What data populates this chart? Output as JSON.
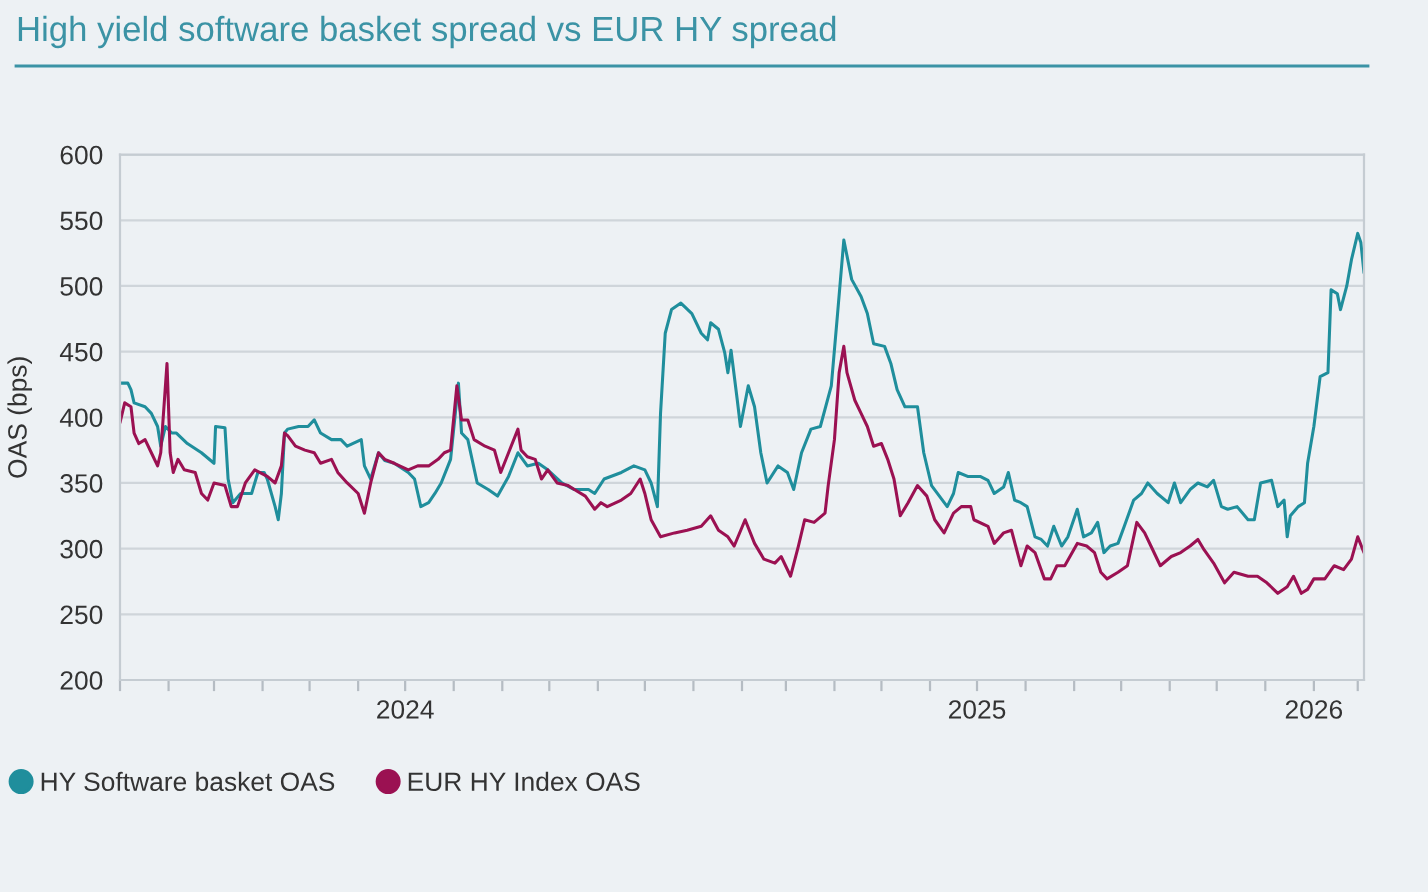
{
  "chart_data": {
    "type": "line",
    "title": "High yield software basket spread vs EUR HY spread",
    "ylabel": "OAS (bps)",
    "series": [
      {
        "name": "HY Software basket OAS",
        "color": "#1f8e9c",
        "x": [
          "2024-01-01",
          "2024-01-06",
          "2024-01-08",
          "2024-01-10",
          "2024-01-17",
          "2024-01-21",
          "2024-01-25",
          "2024-01-27",
          "2024-01-30",
          "2024-02-03",
          "2024-02-06",
          "2024-02-13",
          "2024-02-22",
          "2024-03-01",
          "2024-03-02",
          "2024-03-08",
          "2024-03-10",
          "2024-03-13",
          "2024-03-18",
          "2024-03-25",
          "2024-03-29",
          "2024-04-02",
          "2024-04-04",
          "2024-04-09",
          "2024-04-11",
          "2024-04-13",
          "2024-04-15",
          "2024-04-17",
          "2024-04-24",
          "2024-04-30",
          "2024-05-04",
          "2024-05-08",
          "2024-05-15",
          "2024-05-21",
          "2024-05-25",
          "2024-06-03",
          "2024-06-05",
          "2024-06-09",
          "2024-06-14",
          "2024-06-18",
          "2024-06-24",
          "2024-07-03",
          "2024-07-07",
          "2024-07-11",
          "2024-07-16",
          "2024-07-20",
          "2024-07-24",
          "2024-07-30",
          "2024-08-04",
          "2024-08-06",
          "2024-08-10",
          "2024-08-16",
          "2024-08-23",
          "2024-08-29",
          "2024-09-05",
          "2024-09-11",
          "2024-09-17",
          "2024-09-24",
          "2024-09-30",
          "2024-10-09",
          "2024-10-17",
          "2024-10-26",
          "2024-10-30",
          "2024-11-05",
          "2024-11-16",
          "2024-11-24",
          "2024-12-01",
          "2024-12-05",
          "2024-12-09",
          "2024-12-11",
          "2024-12-14",
          "2024-12-18",
          "2024-12-24",
          "2024-12-31",
          "2025-01-06",
          "2025-01-10",
          "2025-01-12",
          "2025-01-17",
          "2025-01-21",
          "2025-01-23",
          "2025-01-25",
          "2025-01-29",
          "2025-01-31",
          "2025-02-05",
          "2025-02-09",
          "2025-02-13",
          "2025-02-17",
          "2025-02-24",
          "2025-03-02",
          "2025-03-06",
          "2025-03-11",
          "2025-03-17",
          "2025-03-23",
          "2025-03-30",
          "2025-04-03",
          "2025-04-07",
          "2025-04-12",
          "2025-04-18",
          "2025-04-22",
          "2025-04-26",
          "2025-05-03",
          "2025-05-07",
          "2025-05-11",
          "2025-05-16",
          "2025-05-24",
          "2025-05-28",
          "2025-06-02",
          "2025-06-12",
          "2025-06-16",
          "2025-06-19",
          "2025-06-25",
          "2025-07-03",
          "2025-07-08",
          "2025-07-12",
          "2025-07-18",
          "2025-07-21",
          "2025-07-25",
          "2025-07-29",
          "2025-08-02",
          "2025-08-07",
          "2025-08-11",
          "2025-08-15",
          "2025-08-19",
          "2025-08-24",
          "2025-08-28",
          "2025-09-03",
          "2025-09-07",
          "2025-09-12",
          "2025-09-16",
          "2025-09-20",
          "2025-09-24",
          "2025-09-29",
          "2025-10-03",
          "2025-10-09",
          "2025-10-14",
          "2025-10-18",
          "2025-10-24",
          "2025-10-31",
          "2025-11-04",
          "2025-11-08",
          "2025-11-14",
          "2025-11-19",
          "2025-11-25",
          "2025-11-29",
          "2025-12-04",
          "2025-12-08",
          "2025-12-14",
          "2025-12-21",
          "2025-12-25",
          "2025-12-29",
          "2026-01-05",
          "2026-01-09",
          "2026-01-13",
          "2026-01-15",
          "2026-01-17",
          "2026-01-22",
          "2026-01-26",
          "2026-01-28",
          "2026-02-01",
          "2026-02-05",
          "2026-02-10",
          "2026-02-12",
          "2026-02-16",
          "2026-02-18",
          "2026-02-22",
          "2026-02-25",
          "2026-03-01",
          "2026-03-03",
          "2026-03-05"
        ],
        "values": [
          426,
          426,
          421,
          411,
          408,
          403,
          393,
          378,
          393,
          388,
          388,
          380,
          373,
          365,
          393,
          392,
          353,
          335,
          342,
          342,
          358,
          358,
          353,
          332,
          322,
          342,
          388,
          391,
          393,
          393,
          398,
          388,
          383,
          383,
          378,
          383,
          363,
          353,
          373,
          367,
          365,
          358,
          353,
          332,
          335,
          342,
          350,
          368,
          426,
          388,
          383,
          350,
          345,
          340,
          355,
          373,
          363,
          365,
          360,
          350,
          345,
          345,
          342,
          353,
          358,
          363,
          360,
          350,
          332,
          403,
          464,
          482,
          487,
          479,
          464,
          459,
          472,
          467,
          449,
          434,
          451,
          413,
          393,
          424,
          408,
          373,
          350,
          363,
          358,
          345,
          373,
          391,
          393,
          424,
          479,
          535,
          505,
          492,
          479,
          456,
          454,
          441,
          421,
          408,
          408,
          373,
          348,
          332,
          342,
          358,
          355,
          355,
          352,
          342,
          347,
          358,
          337,
          335,
          332,
          309,
          307,
          302,
          317,
          302,
          309,
          330,
          309,
          312,
          320,
          297,
          302,
          304,
          317,
          337,
          342,
          350,
          342,
          335,
          350,
          335,
          345,
          350,
          347,
          352,
          332,
          330,
          332,
          322,
          322,
          350,
          352,
          332,
          337,
          309,
          325,
          332,
          335,
          365,
          393,
          431,
          434,
          497,
          494,
          482,
          500,
          520,
          540,
          533,
          510
        ]
      },
      {
        "name": "EUR HY Index OAS",
        "color": "#9b1152",
        "x": [
          "2024-01-01",
          "2024-01-04",
          "2024-01-08",
          "2024-01-10",
          "2024-01-13",
          "2024-01-17",
          "2024-01-21",
          "2024-01-25",
          "2024-01-27",
          "2024-01-31",
          "2024-02-02",
          "2024-02-04",
          "2024-02-07",
          "2024-02-11",
          "2024-02-18",
          "2024-02-22",
          "2024-02-26",
          "2024-03-01",
          "2024-03-08",
          "2024-03-12",
          "2024-03-16",
          "2024-03-21",
          "2024-03-27",
          "2024-04-04",
          "2024-04-09",
          "2024-04-13",
          "2024-04-15",
          "2024-04-17",
          "2024-04-22",
          "2024-04-28",
          "2024-05-04",
          "2024-05-08",
          "2024-05-15",
          "2024-05-19",
          "2024-05-25",
          "2024-06-01",
          "2024-06-05",
          "2024-06-09",
          "2024-06-14",
          "2024-06-18",
          "2024-06-24",
          "2024-07-03",
          "2024-07-09",
          "2024-07-16",
          "2024-07-22",
          "2024-07-26",
          "2024-07-30",
          "2024-08-03",
          "2024-08-06",
          "2024-08-10",
          "2024-08-14",
          "2024-08-21",
          "2024-08-27",
          "2024-08-31",
          "2024-09-05",
          "2024-09-11",
          "2024-09-13",
          "2024-09-17",
          "2024-09-22",
          "2024-09-26",
          "2024-09-30",
          "2024-10-06",
          "2024-10-13",
          "2024-10-17",
          "2024-10-24",
          "2024-10-30",
          "2024-11-03",
          "2024-11-07",
          "2024-11-16",
          "2024-11-22",
          "2024-11-28",
          "2024-12-01",
          "2024-12-05",
          "2024-12-11",
          "2024-12-20",
          "2024-12-28",
          "2025-01-06",
          "2025-01-12",
          "2025-01-17",
          "2025-01-23",
          "2025-01-27",
          "2025-02-03",
          "2025-02-09",
          "2025-02-15",
          "2025-02-22",
          "2025-02-26",
          "2025-03-04",
          "2025-03-09",
          "2025-03-13",
          "2025-03-19",
          "2025-03-26",
          "2025-03-28",
          "2025-04-01",
          "2025-04-04",
          "2025-04-07",
          "2025-04-09",
          "2025-04-14",
          "2025-04-18",
          "2025-04-22",
          "2025-04-26",
          "2025-05-01",
          "2025-05-05",
          "2025-05-09",
          "2025-05-13",
          "2025-05-18",
          "2025-05-24",
          "2025-05-30",
          "2025-06-04",
          "2025-06-10",
          "2025-06-16",
          "2025-06-21",
          "2025-06-27",
          "2025-06-29",
          "2025-07-08",
          "2025-07-12",
          "2025-07-18",
          "2025-07-23",
          "2025-07-29",
          "2025-08-02",
          "2025-08-07",
          "2025-08-13",
          "2025-08-17",
          "2025-08-21",
          "2025-08-26",
          "2025-09-03",
          "2025-09-09",
          "2025-09-14",
          "2025-09-18",
          "2025-09-22",
          "2025-09-29",
          "2025-10-05",
          "2025-10-11",
          "2025-10-16",
          "2025-10-20",
          "2025-10-26",
          "2025-11-02",
          "2025-11-08",
          "2025-11-14",
          "2025-11-19",
          "2025-11-23",
          "2025-11-29",
          "2025-12-06",
          "2025-12-12",
          "2025-12-21",
          "2025-12-27",
          "2026-01-02",
          "2026-01-09",
          "2026-01-15",
          "2026-01-19",
          "2026-01-24",
          "2026-01-28",
          "2026-02-01",
          "2026-02-08",
          "2026-02-14",
          "2026-02-20",
          "2026-02-25",
          "2026-03-01",
          "2026-03-05"
        ],
        "values": [
          396,
          411,
          408,
          388,
          380,
          383,
          373,
          363,
          373,
          441,
          373,
          358,
          368,
          360,
          358,
          342,
          337,
          350,
          348,
          332,
          332,
          350,
          360,
          355,
          350,
          363,
          388,
          386,
          378,
          375,
          373,
          365,
          368,
          358,
          350,
          342,
          327,
          350,
          373,
          368,
          365,
          360,
          363,
          363,
          368,
          373,
          375,
          424,
          398,
          398,
          383,
          378,
          375,
          358,
          373,
          391,
          375,
          370,
          368,
          353,
          360,
          350,
          348,
          345,
          340,
          330,
          335,
          332,
          337,
          342,
          353,
          342,
          322,
          309,
          312,
          314,
          317,
          325,
          314,
          309,
          302,
          322,
          304,
          292,
          289,
          294,
          279,
          302,
          322,
          320,
          327,
          348,
          383,
          434,
          454,
          434,
          413,
          403,
          393,
          378,
          380,
          368,
          353,
          325,
          335,
          348,
          340,
          322,
          312,
          327,
          332,
          332,
          322,
          317,
          304,
          312,
          314,
          287,
          302,
          297,
          277,
          277,
          287,
          287,
          304,
          302,
          297,
          282,
          277,
          282,
          287,
          320,
          312,
          302,
          287,
          294,
          297,
          302,
          307,
          299,
          289,
          274,
          282,
          279,
          279,
          274,
          266,
          271,
          279,
          266,
          269,
          277,
          277,
          287,
          284,
          292,
          309,
          297
        ]
      }
    ],
    "xlim": [
      "2024-01-01",
      "2026-03-05"
    ],
    "xticks": [
      {
        "value": "2024-01-01",
        "label": null
      },
      {
        "value": "2024-02-01",
        "label": null
      },
      {
        "value": "2024-03-01",
        "label": null
      },
      {
        "value": "2024-04-01",
        "label": null
      },
      {
        "value": "2024-05-01",
        "label": null
      },
      {
        "value": "2024-06-01",
        "label": null
      },
      {
        "value": "2024-07-01",
        "label": "2024"
      },
      {
        "value": "2024-08-01",
        "label": null
      },
      {
        "value": "2024-09-01",
        "label": null
      },
      {
        "value": "2024-10-01",
        "label": null
      },
      {
        "value": "2024-11-01",
        "label": null
      },
      {
        "value": "2024-12-01",
        "label": null
      },
      {
        "value": "2025-01-01",
        "label": null
      },
      {
        "value": "2025-02-01",
        "label": null
      },
      {
        "value": "2025-03-01",
        "label": null
      },
      {
        "value": "2025-04-01",
        "label": null
      },
      {
        "value": "2025-05-01",
        "label": null
      },
      {
        "value": "2025-06-01",
        "label": null
      },
      {
        "value": "2025-07-01",
        "label": "2025"
      },
      {
        "value": "2025-08-01",
        "label": null
      },
      {
        "value": "2025-09-01",
        "label": null
      },
      {
        "value": "2025-10-01",
        "label": null
      },
      {
        "value": "2025-11-01",
        "label": null
      },
      {
        "value": "2025-12-01",
        "label": null
      },
      {
        "value": "2026-01-01",
        "label": null
      },
      {
        "value": "2026-02-01",
        "label": "2026"
      },
      {
        "value": "2026-03-01",
        "label": null
      }
    ],
    "ylim": [
      200,
      600
    ],
    "yticks": [
      200,
      250,
      300,
      350,
      400,
      450,
      500,
      550,
      600
    ],
    "grid": "y",
    "legend": "bottom left"
  }
}
